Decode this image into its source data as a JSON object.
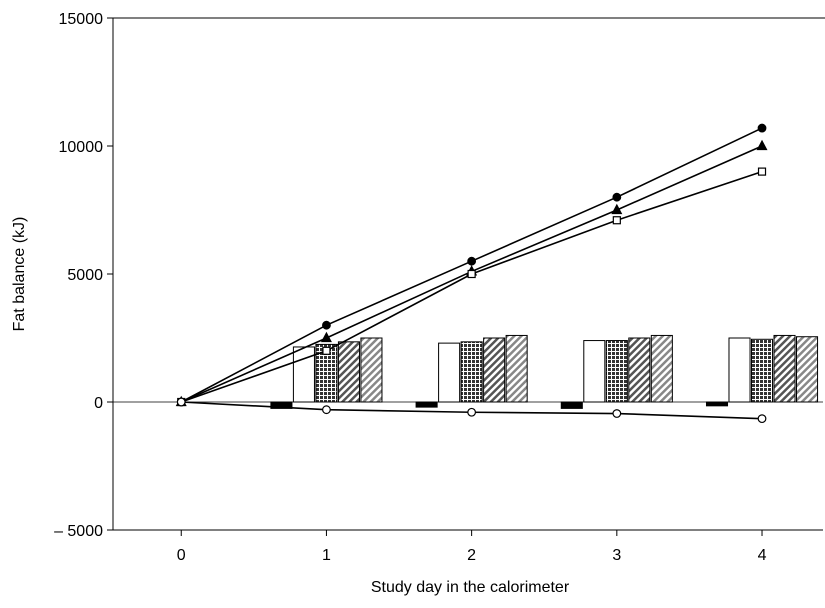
{
  "chart_data": {
    "type": "combo",
    "x_label": "Study day in the calorimeter",
    "y_label": "Fat balance (kJ)",
    "x": [
      0,
      1,
      2,
      3,
      4
    ],
    "xlim": [
      -0.47,
      4.42
    ],
    "xticks": [
      0,
      1,
      2,
      3,
      4
    ],
    "ylim": [
      -5000,
      15000
    ],
    "yticks": [
      {
        "value": -5000,
        "label": "– 5000"
      },
      0,
      5000,
      10000,
      15000
    ],
    "series": [
      {
        "type": "bar",
        "color": "#000000",
        "pattern": "solid",
        "values": [
          null,
          -250,
          -200,
          -250,
          -150
        ]
      },
      {
        "type": "bar",
        "color": "#ffffff",
        "pattern": "solid",
        "values": [
          null,
          2150,
          2300,
          2400,
          2500
        ]
      },
      {
        "type": "bar",
        "color": "#333333",
        "pattern": "dots",
        "values": [
          null,
          2250,
          2350,
          2400,
          2450
        ]
      },
      {
        "type": "bar",
        "color": "#555555",
        "pattern": "hatch",
        "values": [
          null,
          2350,
          2500,
          2500,
          2600
        ]
      },
      {
        "type": "bar",
        "color": "#888888",
        "pattern": "hatch",
        "values": [
          null,
          2500,
          2600,
          2600,
          2550
        ]
      },
      {
        "type": "line",
        "color": "#000000",
        "marker": "circle",
        "filled": true,
        "values": [
          0,
          3000,
          5500,
          8000,
          10700
        ]
      },
      {
        "type": "line",
        "color": "#000000",
        "marker": "triangle",
        "filled": true,
        "values": [
          0,
          2500,
          5100,
          7500,
          10000
        ]
      },
      {
        "type": "line",
        "color": "#000000",
        "marker": "square",
        "filled": false,
        "values": [
          0,
          2000,
          5000,
          7100,
          9000
        ]
      },
      {
        "type": "line",
        "color": "#000000",
        "marker": "circle",
        "filled": false,
        "values": [
          0,
          -300,
          -400,
          -450,
          -650
        ]
      }
    ]
  }
}
